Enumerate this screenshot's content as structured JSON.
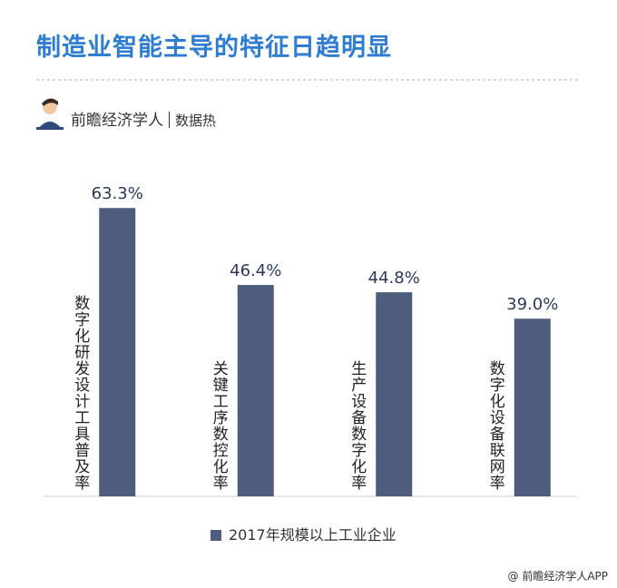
{
  "brand": "前瞻经济学人",
  "brand_tag": "数据热",
  "source": "@ 前瞻经济学人APP",
  "chart_data": {
    "type": "bar",
    "title": "制造业智能主导的特征日趋明显",
    "categories": [
      "数字化研发设计工具普及率",
      "关键工序数控化率",
      "生产设备数字化率",
      "数字化设备联网率"
    ],
    "series": [
      {
        "name": "2017年规模以上工业企业",
        "color": "#4e5d7e",
        "values": [
          63.3,
          46.4,
          44.8,
          39.0
        ],
        "value_labels": [
          "63.3%",
          "46.4%",
          "44.8%",
          "39.0%"
        ]
      }
    ]
  }
}
